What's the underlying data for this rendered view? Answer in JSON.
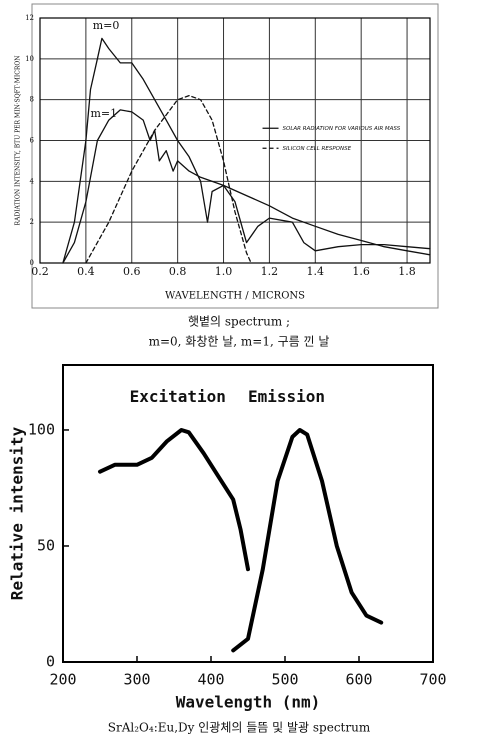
{
  "chart_data": [
    {
      "type": "line",
      "xlabel": "WAVELENGTH / MICRONS",
      "ylabel": "RADIATION INTENSITY, BTU PER MIN·SQFT·MICRON",
      "caption": [
        "햇볕의 spectrum ;",
        "m=0, 화창한 날, m=1, 구름 낀 날"
      ],
      "legend": [
        "SOLAR RADIATION FOR VARIOUS AIR MASS",
        "SILICON CELL RESPONSE"
      ],
      "xlim": [
        0.2,
        1.9
      ],
      "ylim": [
        0,
        12
      ],
      "xticks": [
        0.2,
        0.4,
        0.6,
        0.8,
        {
          "value": 1,
          "label": "1.0"
        },
        1.2,
        1.4,
        1.6,
        1.8
      ],
      "yticks": [
        0,
        2,
        4,
        6,
        8,
        10,
        12
      ],
      "grid": true,
      "series": [
        {
          "name": "m=0",
          "color": "#111111",
          "style": "solid",
          "x": [
            0.3,
            0.35,
            0.4,
            0.42,
            0.45,
            0.47,
            0.5,
            0.55,
            0.6,
            0.65,
            0.7,
            0.75,
            0.8,
            0.85,
            0.9,
            0.93,
            0.95,
            1.0,
            1.05,
            1.1,
            1.15,
            1.2,
            1.3,
            1.35,
            1.4,
            1.5,
            1.6,
            1.7,
            1.8,
            1.9
          ],
          "values": [
            0,
            2,
            6,
            8.5,
            10,
            11,
            10.5,
            9.8,
            9.8,
            9,
            8,
            7,
            6,
            5.2,
            4,
            2,
            3.5,
            3.8,
            3,
            1,
            1.8,
            2.2,
            2,
            1,
            0.6,
            0.8,
            0.9,
            0.9,
            0.8,
            0.7
          ]
        },
        {
          "name": "m=1",
          "color": "#111111",
          "style": "solid",
          "x": [
            0.3,
            0.35,
            0.4,
            0.45,
            0.5,
            0.55,
            0.6,
            0.65,
            0.68,
            0.7,
            0.72,
            0.75,
            0.78,
            0.8,
            0.85,
            0.9,
            1.0,
            1.1,
            1.2,
            1.3,
            1.4,
            1.5,
            1.6,
            1.7,
            1.8,
            1.9
          ],
          "values": [
            0,
            1,
            3,
            6,
            7,
            7.5,
            7.4,
            7,
            6,
            6.5,
            5,
            5.5,
            4.5,
            5,
            4.5,
            4.2,
            3.8,
            3.3,
            2.8,
            2.2,
            1.8,
            1.4,
            1.1,
            0.8,
            0.6,
            0.4
          ]
        },
        {
          "name": "SILICON CELL RESPONSE",
          "color": "#111111",
          "style": "dashed",
          "x": [
            0.4,
            0.5,
            0.6,
            0.7,
            0.8,
            0.85,
            0.9,
            0.95,
            1.0,
            1.05,
            1.1,
            1.12
          ],
          "values": [
            0,
            2,
            4.5,
            6.5,
            8,
            8.2,
            8,
            7,
            5,
            2.5,
            0.5,
            0
          ]
        }
      ]
    },
    {
      "type": "line",
      "xlabel": "Wavelength (nm)",
      "ylabel": "Relative intensity",
      "caption": [
        "SrAl₂O₄:Eu,Dy 인광체의 들뜸 및 발광 spectrum"
      ],
      "xlim": [
        200,
        700
      ],
      "ylim": [
        0,
        128
      ],
      "xticks": [
        200,
        300,
        400,
        500,
        600,
        700
      ],
      "yticks": [
        0,
        50,
        100
      ],
      "grid": false,
      "series": [
        {
          "name": "Excitation",
          "color": "#000000",
          "style": "solid",
          "x": [
            250,
            270,
            300,
            320,
            340,
            360,
            370,
            390,
            410,
            430,
            440,
            450
          ],
          "values": [
            82,
            85,
            85,
            88,
            95,
            100,
            99,
            90,
            80,
            70,
            57,
            40
          ]
        },
        {
          "name": "Emission",
          "color": "#000000",
          "style": "solid",
          "x": [
            430,
            450,
            470,
            490,
            510,
            520,
            530,
            550,
            570,
            590,
            610,
            630
          ],
          "values": [
            5,
            10,
            40,
            78,
            97,
            100,
            98,
            78,
            50,
            30,
            20,
            17
          ]
        }
      ]
    }
  ]
}
